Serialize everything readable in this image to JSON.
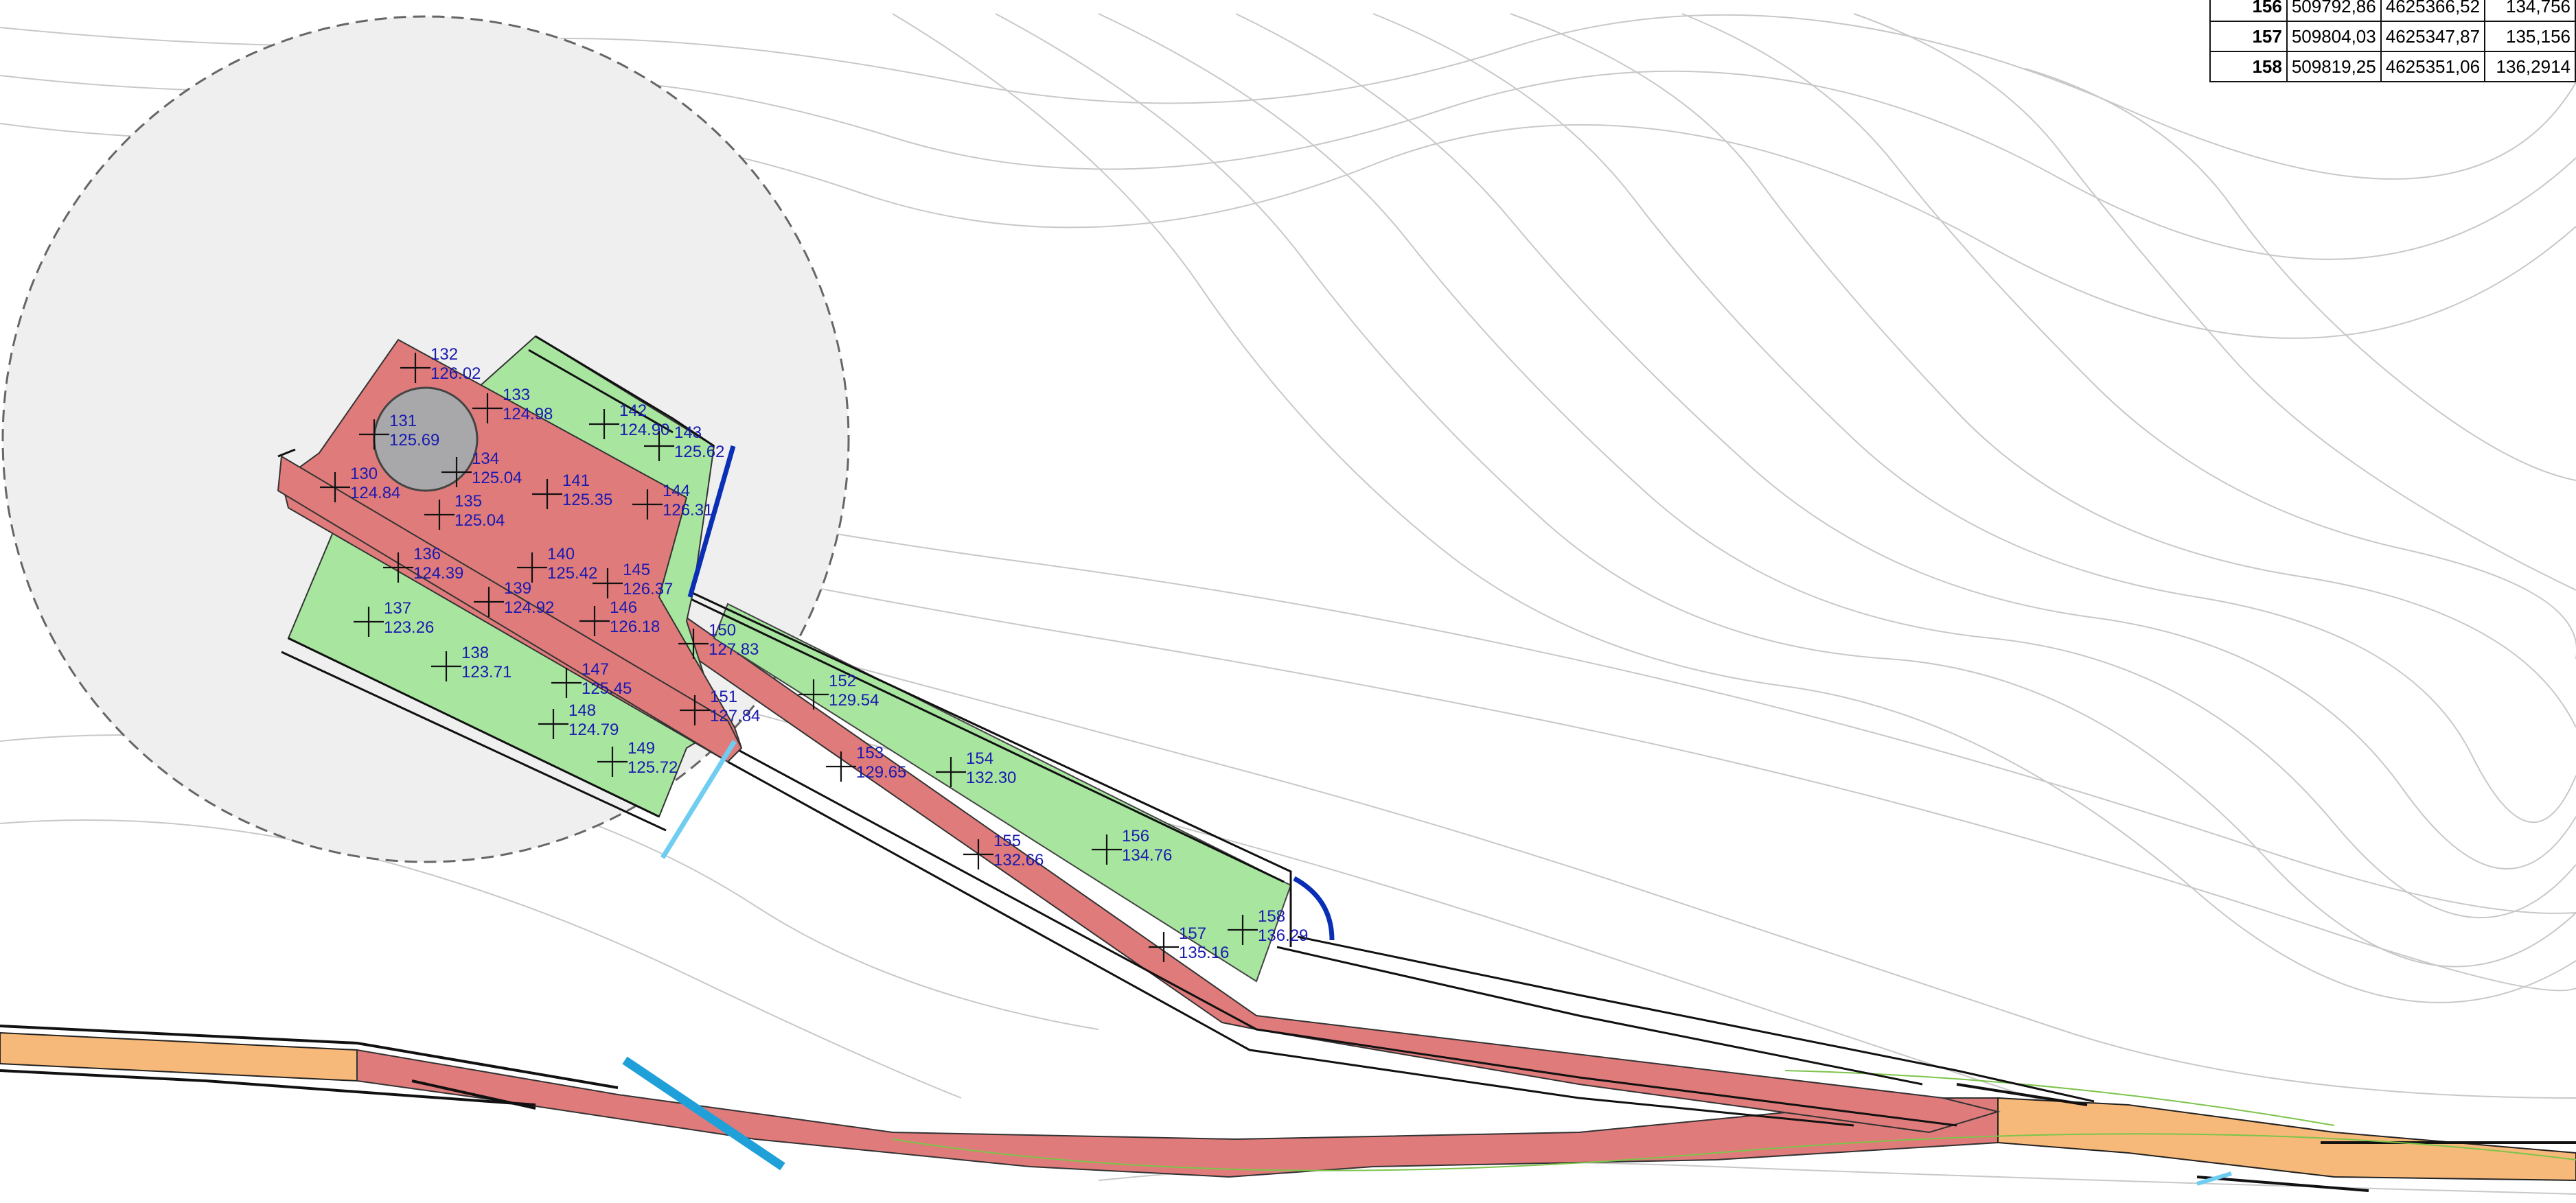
{
  "colors": {
    "red_zone": "#e07b7b",
    "green_zone": "#a8e6a0",
    "road_orange": "#f7b97a",
    "influence_circle": "#efefef",
    "label_blue": "#1a1ab0",
    "blue_line": "#0a2fb5",
    "cyan_line": "#20a0d8",
    "contour": "#c8c8c8"
  },
  "points": [
    {
      "id": "130",
      "z": "124.84"
    },
    {
      "id": "131",
      "z": "125.69"
    },
    {
      "id": "132",
      "z": "126.02"
    },
    {
      "id": "133",
      "z": "124.98"
    },
    {
      "id": "134",
      "z": "125.04"
    },
    {
      "id": "135",
      "z": "125.04"
    },
    {
      "id": "136",
      "z": "124.39"
    },
    {
      "id": "137",
      "z": "123.26"
    },
    {
      "id": "138",
      "z": "123.71"
    },
    {
      "id": "139",
      "z": "124.92"
    },
    {
      "id": "140",
      "z": "125.42"
    },
    {
      "id": "141",
      "z": "125.35"
    },
    {
      "id": "142",
      "z": "124.90"
    },
    {
      "id": "143",
      "z": "125.62"
    },
    {
      "id": "144",
      "z": "126.31"
    },
    {
      "id": "145",
      "z": "126.37"
    },
    {
      "id": "146",
      "z": "126.18"
    },
    {
      "id": "147",
      "z": "125.45"
    },
    {
      "id": "148",
      "z": "124.79"
    },
    {
      "id": "149",
      "z": "125.72"
    },
    {
      "id": "150",
      "z": "127.83"
    },
    {
      "id": "151",
      "z": "127.84"
    },
    {
      "id": "152",
      "z": "129.54"
    },
    {
      "id": "153",
      "z": "129.65"
    },
    {
      "id": "154",
      "z": "132.30"
    },
    {
      "id": "155",
      "z": "132.66"
    },
    {
      "id": "156",
      "z": "134.76"
    },
    {
      "id": "157",
      "z": "135.16"
    },
    {
      "id": "158",
      "z": "136.29"
    }
  ],
  "coordinate_table": [
    {
      "id": "156",
      "x": "509792,86",
      "y": "4625366,52",
      "z": "134,756"
    },
    {
      "id": "157",
      "x": "509804,03",
      "y": "4625347,87",
      "z": "135,156"
    },
    {
      "id": "158",
      "x": "509819,25",
      "y": "4625351,06",
      "z": "136,2914"
    }
  ]
}
